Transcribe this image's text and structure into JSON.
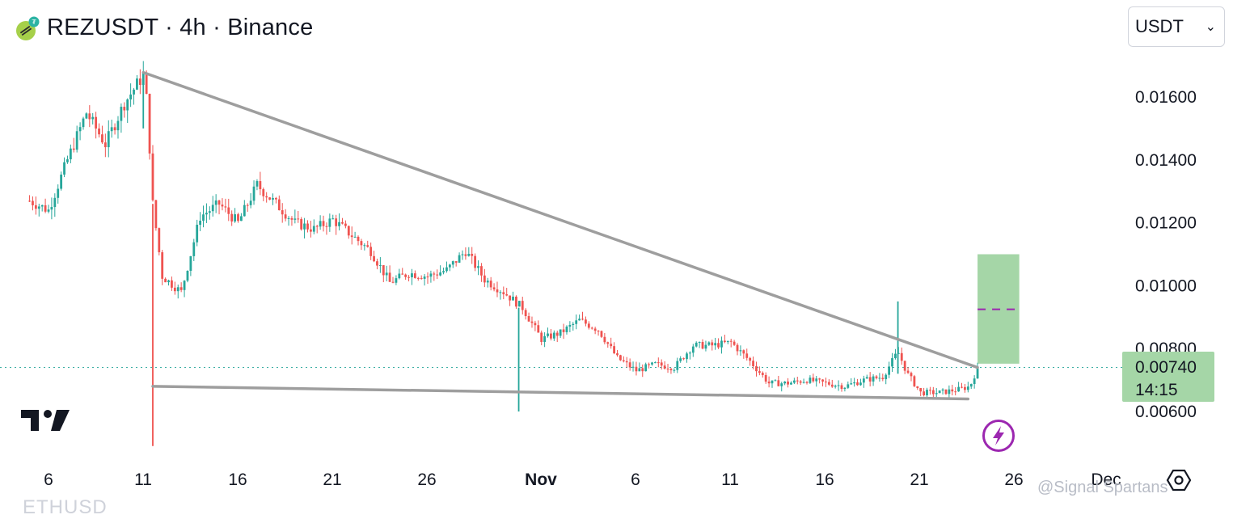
{
  "header": {
    "title": "REZUSDT · 4h · Binance",
    "currency_select": "USDT"
  },
  "icons": {
    "symbol_logo": "rez-coin-icon",
    "dropdown": "chevron-down-icon",
    "tradingview": "tradingview-logo",
    "settings": "settings-hexagon-icon",
    "lightning": "lightning-bolt-icon"
  },
  "watermark": "@Signal Spartans",
  "bottom_cutoff": "ETHUSD",
  "price_tag": {
    "price": "0.00740",
    "countdown": "14:15",
    "color": "#a5d6a7"
  },
  "colors": {
    "up": "#26a69a",
    "down": "#ef5350",
    "trendline": "#9e9e9e",
    "target_box": "#a5d6a7",
    "target_mid": "#9c27b0",
    "bolt": "#9c27b0"
  },
  "chart_data": {
    "type": "candlestick",
    "title": "REZUSDT · 4h · Binance",
    "ylim": [
      0.0049,
      0.0178
    ],
    "y_ticks": [
      "0.01600",
      "0.01400",
      "0.01200",
      "0.01000",
      "0.00800",
      "0.00600"
    ],
    "x_ticks": [
      "6",
      "11",
      "16",
      "21",
      "26",
      "Nov",
      "6",
      "11",
      "16",
      "21",
      "26",
      "Dec"
    ],
    "x_range_days": [
      0,
      55
    ],
    "current_price": 0.0074,
    "anchor_points": [
      [
        0,
        0.0127
      ],
      [
        1,
        0.0124
      ],
      [
        2,
        0.014
      ],
      [
        3,
        0.0155
      ],
      [
        4,
        0.0145
      ],
      [
        5,
        0.0158
      ],
      [
        6,
        0.0167
      ],
      [
        6.2,
        0.0158
      ],
      [
        6.5,
        0.0126
      ],
      [
        7,
        0.0103
      ],
      [
        8,
        0.0098
      ],
      [
        9,
        0.0122
      ],
      [
        10,
        0.0126
      ],
      [
        11,
        0.012
      ],
      [
        12,
        0.0132
      ],
      [
        13,
        0.0126
      ],
      [
        14,
        0.012
      ],
      [
        15,
        0.0118
      ],
      [
        16,
        0.0121
      ],
      [
        17,
        0.0116
      ],
      [
        18,
        0.0111
      ],
      [
        19,
        0.0101
      ],
      [
        20,
        0.0104
      ],
      [
        21,
        0.0103
      ],
      [
        22,
        0.0105
      ],
      [
        23,
        0.0111
      ],
      [
        24,
        0.0102
      ],
      [
        25,
        0.0098
      ],
      [
        26,
        0.0093
      ],
      [
        27,
        0.0083
      ],
      [
        28,
        0.0085
      ],
      [
        29,
        0.0089
      ],
      [
        30,
        0.0086
      ],
      [
        31,
        0.0077
      ],
      [
        32,
        0.0073
      ],
      [
        33,
        0.0075
      ],
      [
        34,
        0.0074
      ],
      [
        35,
        0.0081
      ],
      [
        36,
        0.0081
      ],
      [
        37,
        0.0082
      ],
      [
        38,
        0.0076
      ],
      [
        39,
        0.0069
      ],
      [
        40,
        0.0069
      ],
      [
        41,
        0.007
      ],
      [
        42,
        0.0069
      ],
      [
        43,
        0.0068
      ],
      [
        44,
        0.007
      ],
      [
        45,
        0.0071
      ],
      [
        45.8,
        0.0079
      ],
      [
        46.3,
        0.0072
      ],
      [
        47,
        0.0066
      ],
      [
        48,
        0.0066
      ],
      [
        49,
        0.0067
      ],
      [
        49.6,
        0.0068
      ],
      [
        50,
        0.0074
      ]
    ],
    "wick_spikes": [
      {
        "day": 6.0,
        "high": 0.01678,
        "low": 0.015
      },
      {
        "day": 6.5,
        "high": 0.0126,
        "low": 0.0049
      },
      {
        "day": 25.8,
        "high": 0.0093,
        "low": 0.006
      },
      {
        "day": 45.8,
        "high": 0.0095,
        "low": 0.0072
      }
    ],
    "trendlines": [
      {
        "name": "descending-resistance",
        "from": [
          6.0,
          0.01678
        ],
        "to": [
          50.0,
          0.0074
        ]
      },
      {
        "name": "horizontal-support",
        "from": [
          6.5,
          0.0068
        ],
        "to": [
          49.5,
          0.0064
        ]
      }
    ],
    "target_box": {
      "x_start": 50.0,
      "x_end": 52.2,
      "y_bottom": 0.00752,
      "y_top": 0.011,
      "mid": 0.00925
    }
  }
}
